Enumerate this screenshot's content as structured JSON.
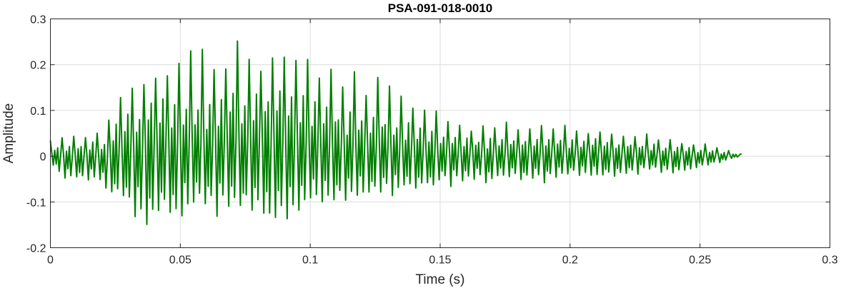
{
  "chart_data": {
    "type": "line",
    "title": "PSA-091-018-0010",
    "xlabel": "Time (s)",
    "ylabel": "Amplitude",
    "xlim": [
      0,
      0.3
    ],
    "ylim": [
      -0.2,
      0.3
    ],
    "grid": true,
    "xticks": [
      0,
      0.05,
      0.1,
      0.15,
      0.2,
      0.25,
      0.3
    ],
    "xtick_labels": [
      "0",
      "0.05",
      "0.1",
      "0.15",
      "0.2",
      "0.25",
      "0.3"
    ],
    "yticks": [
      -0.2,
      -0.1,
      0,
      0.1,
      0.2,
      0.3
    ],
    "ytick_labels": [
      "-0.2",
      "-0.1",
      "0",
      "0.1",
      "0.2",
      "0.3"
    ],
    "line_color": "#007f00",
    "series": [
      {
        "x": [
          0,
          0.005,
          0.01,
          0.015,
          0.02,
          0.022,
          0.025,
          0.028,
          0.03,
          0.033,
          0.036,
          0.038,
          0.04,
          0.045,
          0.05,
          0.055,
          0.06,
          0.065,
          0.07,
          0.074,
          0.08,
          0.085,
          0.09,
          0.095,
          0.1,
          0.105,
          0.11,
          0.115,
          0.12,
          0.125,
          0.13,
          0.135,
          0.14,
          0.145,
          0.15,
          0.155,
          0.16,
          0.17,
          0.18,
          0.19,
          0.2,
          0.21,
          0.22,
          0.23,
          0.24,
          0.25,
          0.26,
          0.266
        ],
        "envelope_upper": [
          0.04,
          0.05,
          0.05,
          0.055,
          0.06,
          0.07,
          0.14,
          0.16,
          0.17,
          0.18,
          0.2,
          0.22,
          0.24,
          0.25,
          0.24,
          0.26,
          0.24,
          0.25,
          0.27,
          0.28,
          0.25,
          0.26,
          0.26,
          0.25,
          0.23,
          0.2,
          0.2,
          0.19,
          0.19,
          0.18,
          0.17,
          0.14,
          0.13,
          0.11,
          0.1,
          0.09,
          0.08,
          0.07,
          0.08,
          0.08,
          0.07,
          0.07,
          0.06,
          0.05,
          0.04,
          0.03,
          0.015,
          0.005
        ],
        "envelope_lower": [
          -0.02,
          -0.05,
          -0.06,
          -0.06,
          -0.07,
          -0.09,
          -0.11,
          -0.12,
          -0.13,
          -0.14,
          -0.15,
          -0.16,
          -0.15,
          -0.14,
          -0.14,
          -0.13,
          -0.14,
          -0.14,
          -0.13,
          -0.14,
          -0.13,
          -0.15,
          -0.14,
          -0.13,
          -0.12,
          -0.11,
          -0.12,
          -0.11,
          -0.1,
          -0.1,
          -0.09,
          -0.08,
          -0.08,
          -0.08,
          -0.07,
          -0.07,
          -0.06,
          -0.06,
          -0.06,
          -0.06,
          -0.05,
          -0.05,
          -0.05,
          -0.04,
          -0.04,
          -0.03,
          -0.01,
          0.0
        ],
        "oscillation_period_s": 0.0045,
        "duration_s": 0.266
      }
    ]
  }
}
